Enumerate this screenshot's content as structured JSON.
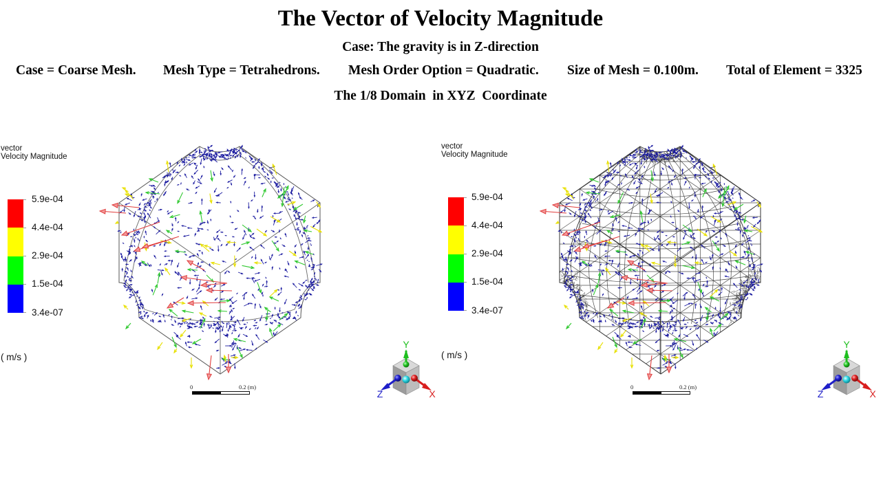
{
  "header": {
    "title": "The Vector of Velocity Magnitude",
    "case_line": "Case: The gravity is in Z-direction",
    "info": [
      "Case = Coarse Mesh.",
      "Mesh Type = Tetrahedrons.",
      "Mesh Order Option = Quadratic.",
      "Size of Mesh = 0.100m.",
      "Total of Element = 3325"
    ],
    "domain_line": "The 1/8 Domain  in XYZ  Coordinate"
  },
  "legend": {
    "title_line1": "vector",
    "title_line2": "Velocity Magnitude",
    "ticks": [
      "5.9e-04",
      "4.4e-04",
      "2.9e-04",
      "1.5e-04",
      "3.4e-07"
    ],
    "band_colors": [
      "#ff0000",
      "#ffff00",
      "#00ff00",
      "#0000ff"
    ],
    "units": "( m/s )"
  },
  "scale_bar": {
    "start_label": "0",
    "end_label": "0.2 (m)"
  },
  "triad": {
    "x_label": "X",
    "y_label": "Y",
    "z_label": "Z",
    "x_color": "#d81e1e",
    "y_color": "#1fbf1f",
    "z_color": "#1e1ec8"
  },
  "vector_colors": {
    "high": "#e03c3c",
    "mid_high": "#e8e000",
    "mid_low": "#2ec82e",
    "low": "#1c1ca0"
  },
  "mesh_color": "#2b2b2b"
}
